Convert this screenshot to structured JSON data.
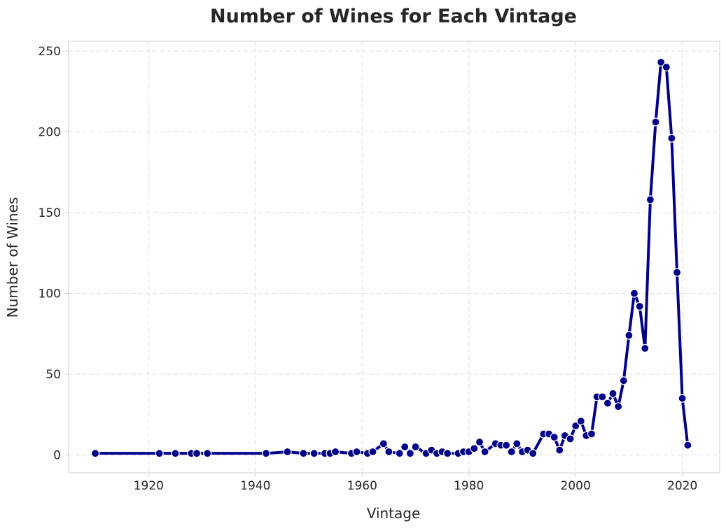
{
  "chart_data": {
    "type": "line",
    "title": "Number of Wines for Each Vintage",
    "xlabel": "Vintage",
    "ylabel": "Number of Wines",
    "xlim": [
      1905,
      2027
    ],
    "ylim": [
      -11,
      256
    ],
    "xticks": [
      1920,
      1940,
      1960,
      1980,
      2000,
      2020
    ],
    "yticks": [
      0,
      50,
      100,
      150,
      200,
      250
    ],
    "grid": true,
    "color": "#00008b",
    "marker_edge": "#ffffff",
    "points": [
      [
        1910,
        1
      ],
      [
        1922,
        1
      ],
      [
        1925,
        1
      ],
      [
        1928,
        1
      ],
      [
        1929,
        1
      ],
      [
        1931,
        1
      ],
      [
        1942,
        1
      ],
      [
        1946,
        2
      ],
      [
        1949,
        1
      ],
      [
        1951,
        1
      ],
      [
        1953,
        1
      ],
      [
        1954,
        1
      ],
      [
        1955,
        2
      ],
      [
        1958,
        1
      ],
      [
        1959,
        2
      ],
      [
        1961,
        1
      ],
      [
        1962,
        2
      ],
      [
        1964,
        7
      ],
      [
        1965,
        2
      ],
      [
        1967,
        1
      ],
      [
        1968,
        5
      ],
      [
        1969,
        1
      ],
      [
        1970,
        5
      ],
      [
        1972,
        1
      ],
      [
        1973,
        3
      ],
      [
        1974,
        1
      ],
      [
        1975,
        2
      ],
      [
        1976,
        1
      ],
      [
        1978,
        1
      ],
      [
        1979,
        2
      ],
      [
        1980,
        2
      ],
      [
        1981,
        4
      ],
      [
        1982,
        8
      ],
      [
        1983,
        2
      ],
      [
        1985,
        7
      ],
      [
        1986,
        6
      ],
      [
        1987,
        6
      ],
      [
        1988,
        2
      ],
      [
        1989,
        7
      ],
      [
        1990,
        2
      ],
      [
        1991,
        3
      ],
      [
        1992,
        1
      ],
      [
        1994,
        13
      ],
      [
        1995,
        13
      ],
      [
        1996,
        11
      ],
      [
        1997,
        3
      ],
      [
        1998,
        12
      ],
      [
        1999,
        10
      ],
      [
        2000,
        18
      ],
      [
        2001,
        21
      ],
      [
        2002,
        12
      ],
      [
        2003,
        13
      ],
      [
        2004,
        36
      ],
      [
        2005,
        36
      ],
      [
        2006,
        32
      ],
      [
        2007,
        38
      ],
      [
        2008,
        30
      ],
      [
        2009,
        46
      ],
      [
        2010,
        74
      ],
      [
        2011,
        100
      ],
      [
        2012,
        92
      ],
      [
        2013,
        66
      ],
      [
        2014,
        158
      ],
      [
        2015,
        206
      ],
      [
        2016,
        243
      ],
      [
        2017,
        240
      ],
      [
        2018,
        196
      ],
      [
        2019,
        113
      ],
      [
        2020,
        35
      ],
      [
        2021,
        6
      ]
    ]
  }
}
